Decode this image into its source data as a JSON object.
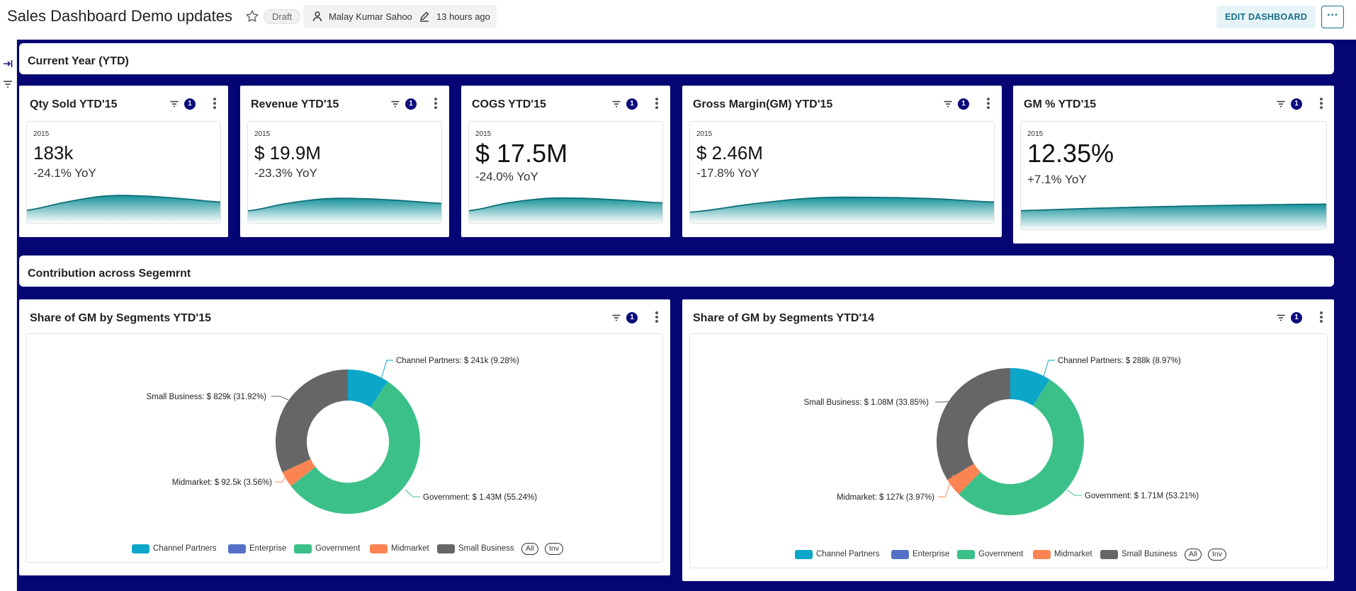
{
  "header": {
    "title": "Sales Dashboard Demo updates",
    "status": "Draft",
    "owner": "Malay Kumar Sahoo",
    "modified": "13 hours ago",
    "edit_label": "EDIT DASHBOARD",
    "more_label": "···"
  },
  "sections": {
    "ytd": "Current Year (YTD)",
    "contribution": "Contribution across Segemrnt"
  },
  "kpis": [
    {
      "title": "Qty Sold YTD'15",
      "filter_count": "1",
      "year": "2015",
      "value": "183k",
      "yoy": "-24.1% YoY",
      "trend": [
        0.38,
        0.62,
        0.8,
        0.8,
        0.72,
        0.62
      ]
    },
    {
      "title": "Revenue YTD'15",
      "filter_count": "1",
      "year": "2015",
      "value": "$ 19.9M",
      "yoy": "-23.3% YoY",
      "trend": [
        0.36,
        0.58,
        0.72,
        0.72,
        0.66,
        0.58
      ]
    },
    {
      "title": "COGS YTD'15",
      "filter_count": "1",
      "year": "2015",
      "value": "$ 17.5M",
      "yoy": "-24.0% YoY",
      "trend": [
        0.38,
        0.62,
        0.76,
        0.76,
        0.7,
        0.62
      ]
    },
    {
      "title": "Gross Margin(GM) YTD'15",
      "filter_count": "1",
      "year": "2015",
      "value": "$ 2.46M",
      "yoy": "-17.8% YoY",
      "trend": [
        0.32,
        0.56,
        0.74,
        0.76,
        0.72,
        0.62
      ]
    },
    {
      "title": "GM % YTD'15",
      "filter_count": "1",
      "year": "2015",
      "value": "12.35%",
      "yoy": "+7.1% YoY",
      "trend": [
        0.58,
        0.64,
        0.69,
        0.73,
        0.76,
        0.78
      ]
    }
  ],
  "colors": {
    "Channel Partners": "#0ca6c9",
    "Enterprise": "#5470c6",
    "Government": "#3cc089",
    "Midmarket": "#fc8452",
    "Small Business": "#666666"
  },
  "pies": [
    {
      "title": "Share of GM by Segments YTD'15",
      "filter_count": "1",
      "legend": [
        "Channel Partners",
        "Enterprise",
        "Government",
        "Midmarket",
        "Small Business"
      ],
      "all_label": "All",
      "inv_label": "Inv",
      "labels": [
        "Channel Partners: $ 241k (9.28%)",
        "Government: $ 1.43M (55.24%)",
        "Midmarket: $ 92.5k (3.56%)",
        "Small Business: $ 829k (31.92%)"
      ]
    },
    {
      "title": "Share of GM by Segments YTD'14",
      "filter_count": "1",
      "legend": [
        "Channel Partners",
        "Enterprise",
        "Government",
        "Midmarket",
        "Small Business"
      ],
      "all_label": "All",
      "inv_label": "Inv",
      "labels": [
        "Channel Partners: $ 288k (8.97%)",
        "Government: $ 1.71M (53.21%)",
        "Midmarket: $ 127k (3.97%)",
        "Small Business: $ 1.08M (33.85%)"
      ]
    }
  ],
  "chart_data": [
    {
      "type": "pie",
      "title": "Share of GM by Segments YTD'15",
      "categories": [
        "Channel Partners",
        "Enterprise",
        "Government",
        "Midmarket",
        "Small Business"
      ],
      "values": [
        241000,
        0,
        1430000,
        92500,
        829000
      ],
      "percent": [
        9.28,
        0,
        55.24,
        3.56,
        31.92
      ]
    },
    {
      "type": "pie",
      "title": "Share of GM by Segments YTD'14",
      "categories": [
        "Channel Partners",
        "Enterprise",
        "Government",
        "Midmarket",
        "Small Business"
      ],
      "values": [
        288000,
        0,
        1710000,
        127000,
        1080000
      ],
      "percent": [
        8.97,
        0,
        53.21,
        3.97,
        33.85
      ]
    }
  ]
}
